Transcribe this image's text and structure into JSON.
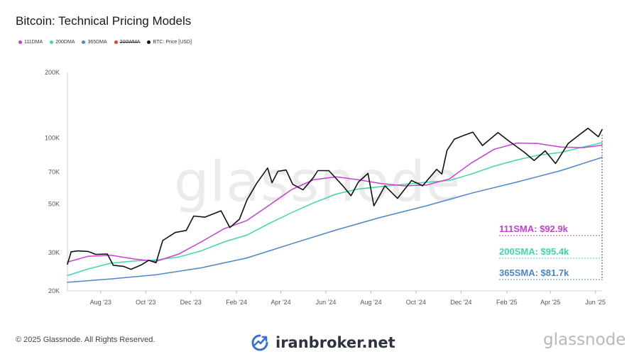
{
  "title": "Bitcoin: Technical Pricing Models",
  "legend": [
    {
      "label": "111DMA",
      "color": "#c73fd6",
      "strike": false
    },
    {
      "label": "200DMA",
      "color": "#3fd6ad",
      "strike": false
    },
    {
      "label": "365DMA",
      "color": "#4a86c8",
      "strike": false
    },
    {
      "label": "200WMA",
      "color": "#e53935",
      "strike": true
    },
    {
      "label": "BTC: Price [USD]",
      "color": "#111111",
      "strike": false
    }
  ],
  "watermark": "glassnode",
  "annotations": [
    {
      "text": "111SMA: $92.9k",
      "color": "#c73fd6"
    },
    {
      "text": "200SMA: $95.4k",
      "color": "#3fd6ad"
    },
    {
      "text": "365SMA: $81.7k",
      "color": "#4a86c8"
    }
  ],
  "footer": {
    "copyright": "© 2025 Glassnode. All Rights Reserved.",
    "brand": "iranbroker.net",
    "logo_text": "glassnode"
  },
  "chart_data": {
    "type": "line",
    "title": "Bitcoin: Technical Pricing Models",
    "y_scale": "log",
    "ylim": [
      20000,
      200000
    ],
    "yticks": [
      {
        "value": 20000,
        "label": "20K"
      },
      {
        "value": 30000,
        "label": "30K"
      },
      {
        "value": 50000,
        "label": "50K"
      },
      {
        "value": 70000,
        "label": "70K"
      },
      {
        "value": 100000,
        "label": "100K"
      },
      {
        "value": 200000,
        "label": "200K"
      }
    ],
    "xlim": [
      "2023-06-17",
      "2025-06-10"
    ],
    "xticks": [
      {
        "date": "2023-08-01",
        "label": "Aug '23"
      },
      {
        "date": "2023-10-01",
        "label": "Oct '23"
      },
      {
        "date": "2023-12-01",
        "label": "Dec '23"
      },
      {
        "date": "2024-02-01",
        "label": "Feb '24"
      },
      {
        "date": "2024-04-01",
        "label": "Apr '24"
      },
      {
        "date": "2024-06-01",
        "label": "Jun '24"
      },
      {
        "date": "2024-08-01",
        "label": "Aug '24"
      },
      {
        "date": "2024-10-01",
        "label": "Oct '24"
      },
      {
        "date": "2024-12-01",
        "label": "Dec '24"
      },
      {
        "date": "2025-02-01",
        "label": "Feb '25"
      },
      {
        "date": "2025-04-01",
        "label": "Apr '25"
      },
      {
        "date": "2025-06-01",
        "label": "Jun '25"
      }
    ],
    "grid": false,
    "legend_position": "top-left",
    "series": [
      {
        "name": "BTC: Price [USD]",
        "color": "#111111",
        "width": 1.6,
        "points": [
          [
            "2023-06-17",
            26500
          ],
          [
            "2023-06-22",
            30200
          ],
          [
            "2023-07-01",
            30500
          ],
          [
            "2023-07-15",
            30300
          ],
          [
            "2023-07-25",
            29400
          ],
          [
            "2023-08-10",
            29500
          ],
          [
            "2023-08-18",
            26200
          ],
          [
            "2023-09-01",
            25900
          ],
          [
            "2023-09-11",
            25100
          ],
          [
            "2023-09-25",
            26300
          ],
          [
            "2023-10-05",
            27600
          ],
          [
            "2023-10-15",
            26900
          ],
          [
            "2023-10-24",
            34000
          ],
          [
            "2023-11-10",
            37000
          ],
          [
            "2023-11-25",
            37800
          ],
          [
            "2023-12-05",
            44000
          ],
          [
            "2023-12-20",
            43500
          ],
          [
            "2024-01-11",
            46500
          ],
          [
            "2024-01-23",
            39000
          ],
          [
            "2024-02-05",
            42600
          ],
          [
            "2024-02-15",
            52000
          ],
          [
            "2024-02-28",
            62000
          ],
          [
            "2024-03-14",
            73000
          ],
          [
            "2024-03-20",
            62500
          ],
          [
            "2024-03-28",
            70500
          ],
          [
            "2024-04-08",
            71500
          ],
          [
            "2024-04-17",
            61500
          ],
          [
            "2024-05-01",
            58000
          ],
          [
            "2024-05-15",
            66000
          ],
          [
            "2024-05-21",
            71000
          ],
          [
            "2024-06-05",
            71000
          ],
          [
            "2024-06-24",
            60500
          ],
          [
            "2024-07-05",
            54500
          ],
          [
            "2024-07-15",
            63000
          ],
          [
            "2024-07-28",
            69000
          ],
          [
            "2024-08-05",
            49000
          ],
          [
            "2024-08-20",
            60500
          ],
          [
            "2024-09-06",
            53000
          ],
          [
            "2024-09-25",
            64000
          ],
          [
            "2024-10-10",
            60500
          ],
          [
            "2024-10-29",
            72000
          ],
          [
            "2024-11-05",
            68500
          ],
          [
            "2024-11-12",
            88000
          ],
          [
            "2024-11-22",
            99000
          ],
          [
            "2024-12-05",
            103000
          ],
          [
            "2024-12-17",
            106500
          ],
          [
            "2024-12-30",
            92500
          ],
          [
            "2025-01-20",
            106000
          ],
          [
            "2025-02-03",
            97500
          ],
          [
            "2025-02-25",
            86000
          ],
          [
            "2025-03-10",
            79000
          ],
          [
            "2025-03-25",
            87500
          ],
          [
            "2025-04-08",
            76500
          ],
          [
            "2025-04-25",
            94500
          ],
          [
            "2025-05-10",
            103500
          ],
          [
            "2025-05-22",
            111000
          ],
          [
            "2025-06-05",
            101500
          ],
          [
            "2025-06-10",
            109500
          ]
        ]
      },
      {
        "name": "111DMA",
        "color": "#c73fd6",
        "width": 1.5,
        "points": [
          [
            "2023-06-17",
            27100
          ],
          [
            "2023-07-15",
            28800
          ],
          [
            "2023-08-15",
            29100
          ],
          [
            "2023-09-15",
            28000
          ],
          [
            "2023-10-15",
            27300
          ],
          [
            "2023-11-15",
            29500
          ],
          [
            "2023-12-15",
            33500
          ],
          [
            "2024-01-15",
            38500
          ],
          [
            "2024-02-15",
            42000
          ],
          [
            "2024-03-15",
            49000
          ],
          [
            "2024-04-15",
            58000
          ],
          [
            "2024-05-15",
            64500
          ],
          [
            "2024-06-15",
            66500
          ],
          [
            "2024-07-15",
            64500
          ],
          [
            "2024-08-15",
            62000
          ],
          [
            "2024-09-15",
            60500
          ],
          [
            "2024-10-15",
            61000
          ],
          [
            "2024-11-15",
            65000
          ],
          [
            "2024-12-15",
            77000
          ],
          [
            "2025-01-15",
            89000
          ],
          [
            "2025-02-15",
            95000
          ],
          [
            "2025-03-15",
            94500
          ],
          [
            "2025-04-15",
            91000
          ],
          [
            "2025-05-15",
            90500
          ],
          [
            "2025-06-10",
            92900
          ]
        ]
      },
      {
        "name": "200DMA",
        "color": "#3fd6ad",
        "width": 1.5,
        "points": [
          [
            "2023-06-17",
            23500
          ],
          [
            "2023-07-15",
            25200
          ],
          [
            "2023-08-15",
            26800
          ],
          [
            "2023-09-15",
            27400
          ],
          [
            "2023-10-15",
            27700
          ],
          [
            "2023-11-15",
            28600
          ],
          [
            "2023-12-15",
            30500
          ],
          [
            "2024-01-15",
            33500
          ],
          [
            "2024-02-15",
            36000
          ],
          [
            "2024-03-15",
            40500
          ],
          [
            "2024-04-15",
            45500
          ],
          [
            "2024-05-15",
            50500
          ],
          [
            "2024-06-15",
            55500
          ],
          [
            "2024-07-15",
            58500
          ],
          [
            "2024-08-15",
            60000
          ],
          [
            "2024-09-15",
            61500
          ],
          [
            "2024-10-15",
            62800
          ],
          [
            "2024-11-15",
            64000
          ],
          [
            "2024-12-15",
            68500
          ],
          [
            "2025-01-15",
            74500
          ],
          [
            "2025-02-15",
            79500
          ],
          [
            "2025-03-15",
            83500
          ],
          [
            "2025-04-15",
            86000
          ],
          [
            "2025-05-15",
            91000
          ],
          [
            "2025-06-10",
            95400
          ]
        ]
      },
      {
        "name": "365DMA",
        "color": "#4a86c8",
        "width": 1.5,
        "points": [
          [
            "2023-06-17",
            21900
          ],
          [
            "2023-08-15",
            22700
          ],
          [
            "2023-10-15",
            23700
          ],
          [
            "2023-12-15",
            25500
          ],
          [
            "2024-02-15",
            28300
          ],
          [
            "2024-04-15",
            32800
          ],
          [
            "2024-06-15",
            38000
          ],
          [
            "2024-08-15",
            43500
          ],
          [
            "2024-10-15",
            49000
          ],
          [
            "2024-12-15",
            56000
          ],
          [
            "2025-02-15",
            63000
          ],
          [
            "2025-04-15",
            71000
          ],
          [
            "2025-06-10",
            81700
          ]
        ]
      }
    ]
  }
}
